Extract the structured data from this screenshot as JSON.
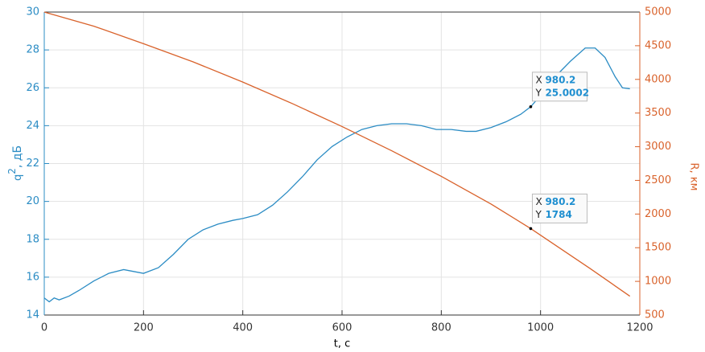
{
  "chart_data": {
    "type": "line",
    "xlabel": "t, с",
    "ylabel": "q",
    "ylabel_sup": "2",
    "ylabel_unit": ", дБ",
    "y2label": "R, км",
    "xlim": [
      0,
      1200
    ],
    "xticks": [
      0,
      200,
      400,
      600,
      800,
      1000,
      1200
    ],
    "ylim": [
      14,
      30
    ],
    "yticks": [
      14,
      16,
      18,
      20,
      22,
      24,
      26,
      28,
      30
    ],
    "y2lim": [
      500,
      5000
    ],
    "y2ticks": [
      500,
      1000,
      1500,
      2000,
      2500,
      3000,
      3500,
      4000,
      4500,
      5000
    ],
    "y_color": "#2b8cc4",
    "y2_color": "#d9622b",
    "grid": true,
    "series": [
      {
        "color": "#2b8cc4",
        "x": [
          0,
          10,
          20,
          30,
          50,
          70,
          100,
          130,
          160,
          180,
          200,
          230,
          260,
          290,
          320,
          350,
          380,
          400,
          430,
          460,
          490,
          520,
          550,
          580,
          610,
          640,
          670,
          700,
          730,
          760,
          790,
          820,
          850,
          870,
          900,
          930,
          960,
          980.2,
          1000,
          1030,
          1060,
          1090,
          1110,
          1130,
          1150,
          1165,
          1180
        ],
        "values": [
          14.9,
          14.7,
          14.9,
          14.8,
          15.0,
          15.3,
          15.8,
          16.2,
          16.4,
          16.3,
          16.2,
          16.5,
          17.2,
          18.0,
          18.5,
          18.8,
          19.0,
          19.1,
          19.3,
          19.8,
          20.5,
          21.3,
          22.2,
          22.9,
          23.4,
          23.8,
          24.0,
          24.1,
          24.1,
          24.0,
          23.8,
          23.8,
          23.7,
          23.7,
          23.9,
          24.2,
          24.6,
          25.0002,
          25.6,
          26.6,
          27.4,
          28.1,
          28.1,
          27.6,
          26.6,
          26.0,
          25.95
        ]
      },
      {
        "color": "#d9622b",
        "axis": "y2",
        "x": [
          0,
          100,
          200,
          300,
          400,
          500,
          600,
          700,
          800,
          900,
          980.2,
          1100,
          1180
        ],
        "values": [
          5000,
          4790,
          4530,
          4260,
          3960,
          3640,
          3300,
          2940,
          2560,
          2150,
          1784,
          1190,
          780
        ]
      }
    ],
    "datatips": [
      {
        "x_label": "X",
        "x": 980.2,
        "y_label": "Y",
        "y": 25.0002,
        "axis": "y"
      },
      {
        "x_label": "X",
        "x": 980.2,
        "y_label": "Y",
        "y": 1784,
        "axis": "y2"
      }
    ]
  }
}
